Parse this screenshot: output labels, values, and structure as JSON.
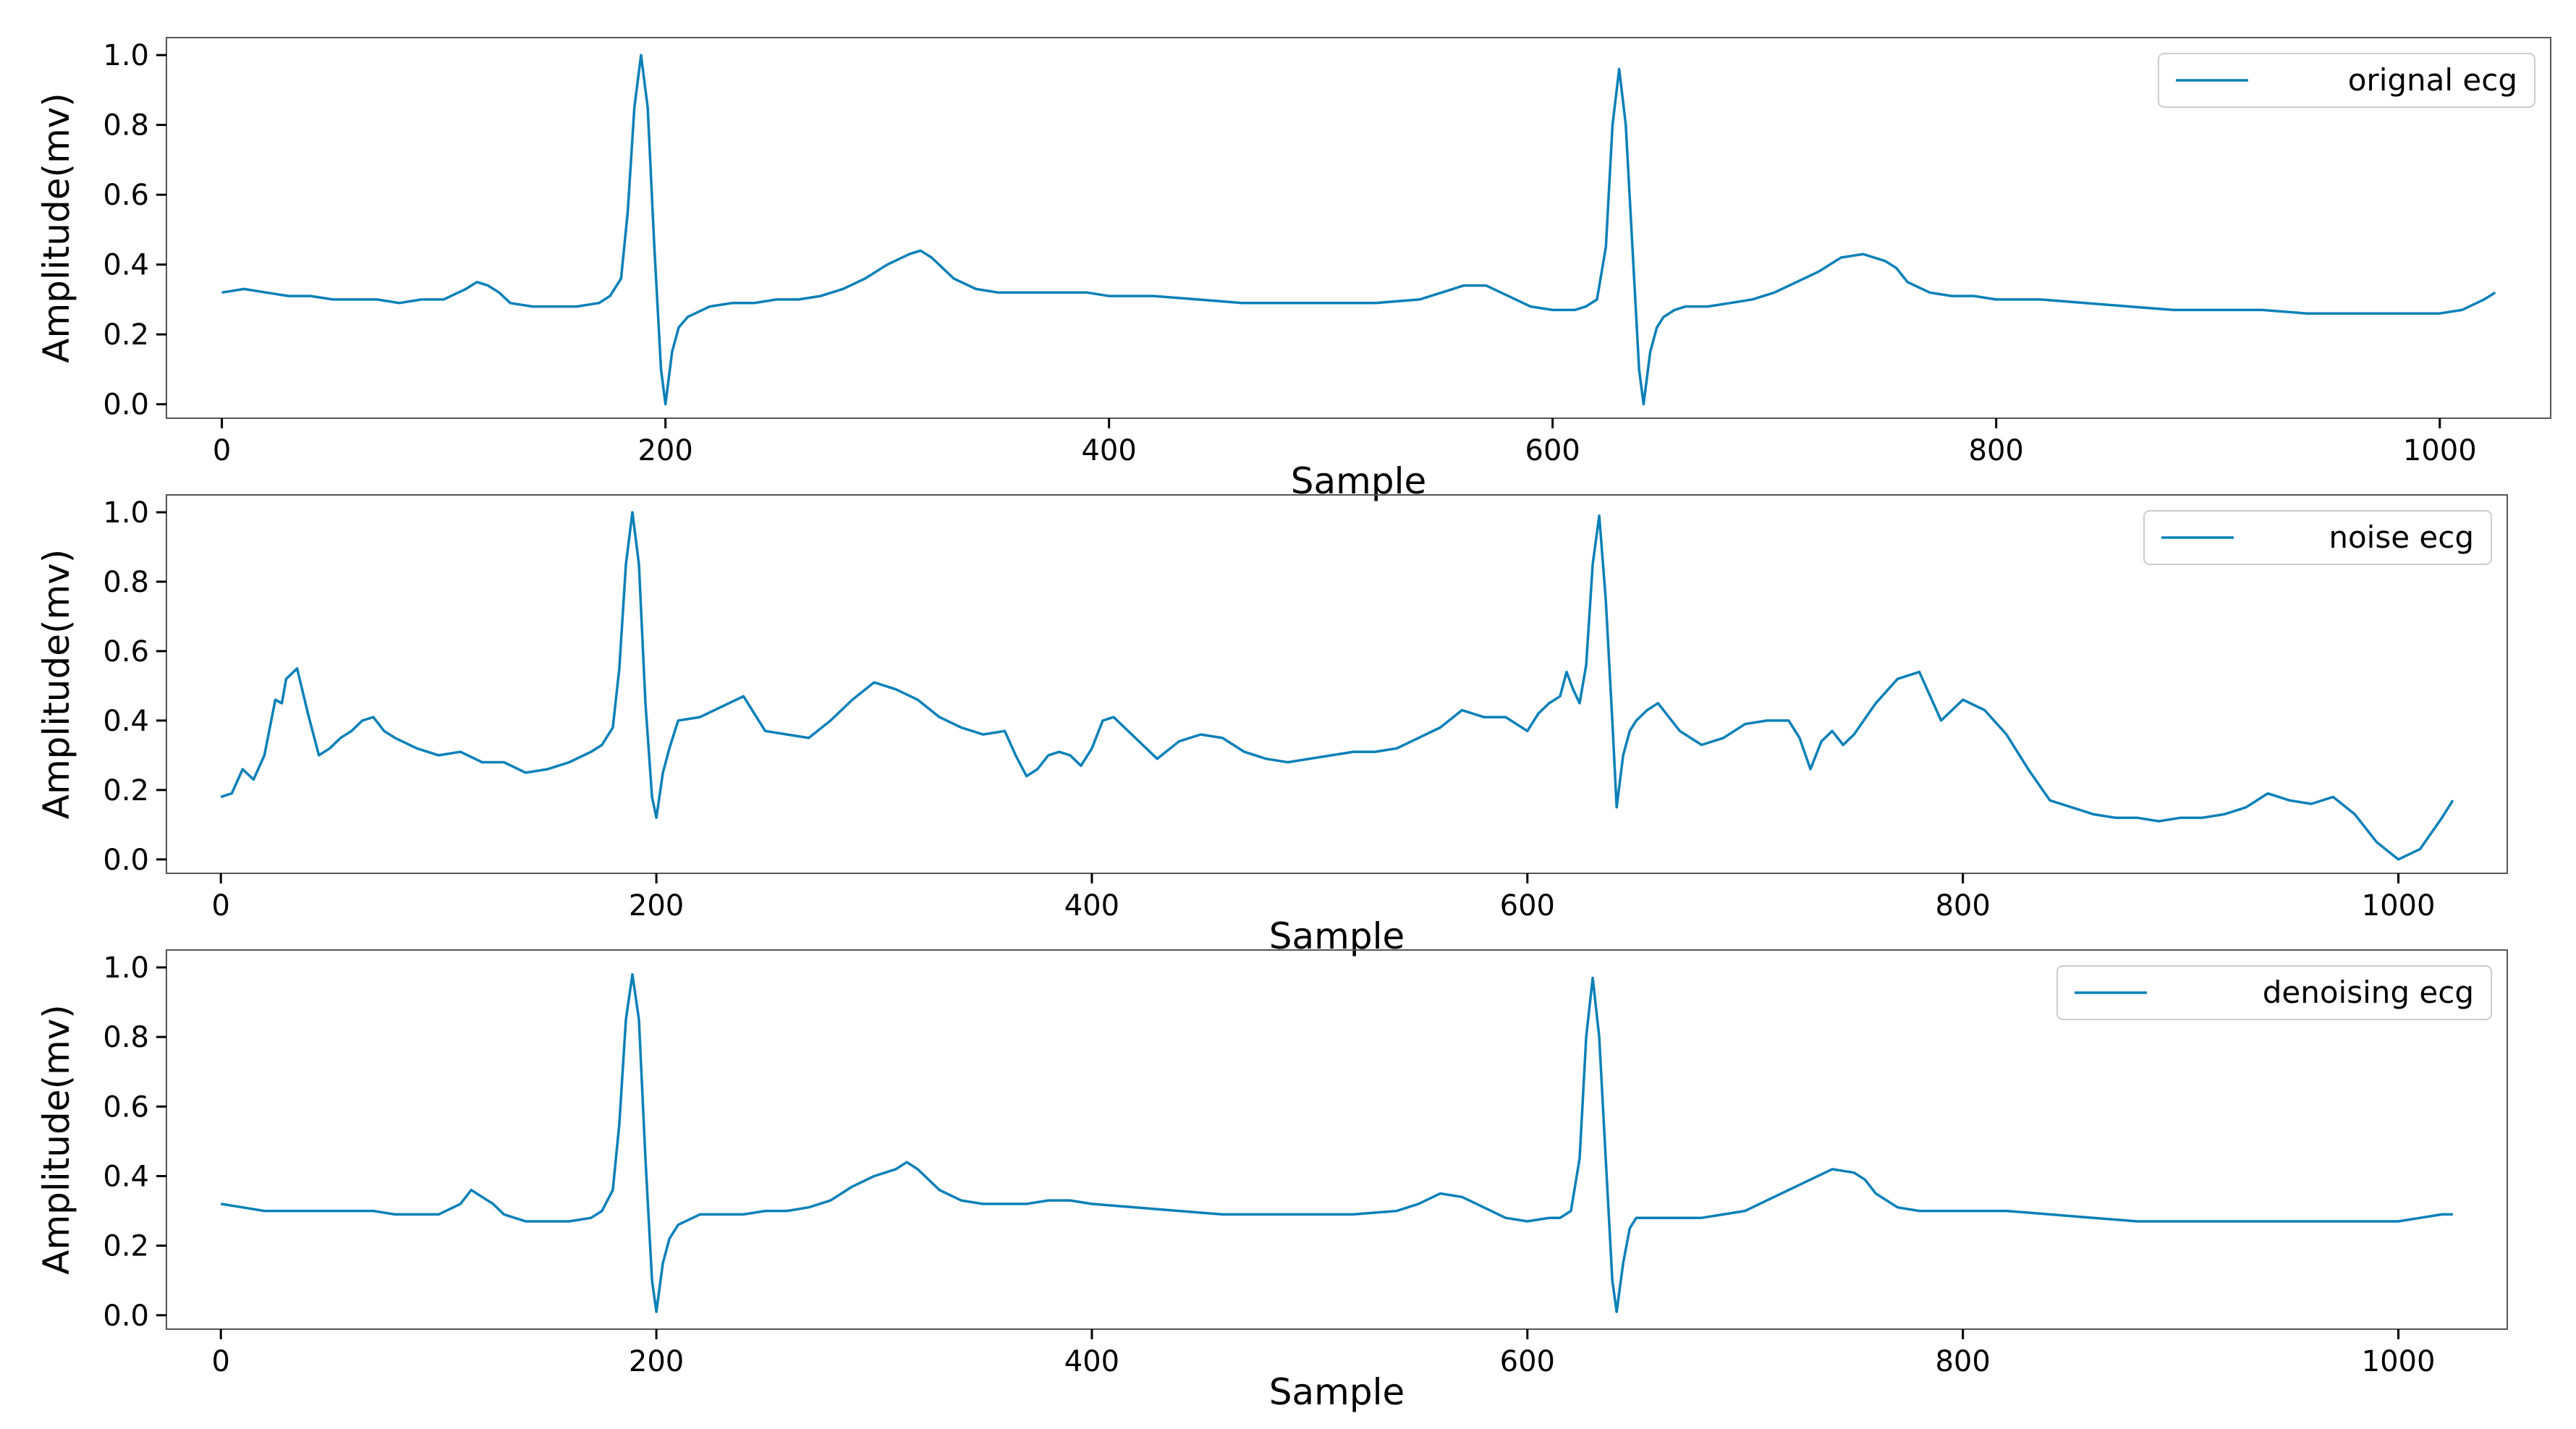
{
  "figure": {
    "line_color": "#0a80b8",
    "axis_color": "#555555"
  },
  "chart_data": [
    {
      "type": "line",
      "xlabel": "Sample",
      "ylabel": "Amplitude(mv)",
      "xlim": [
        -25,
        1050
      ],
      "ylim": [
        -0.04,
        1.05
      ],
      "xticks": [
        0,
        200,
        400,
        600,
        800,
        1000
      ],
      "yticks": [
        0.0,
        0.2,
        0.4,
        0.6,
        0.8,
        1.0
      ],
      "xtick_labels": [
        "0",
        "200",
        "400",
        "600",
        "800",
        "1000"
      ],
      "ytick_labels": [
        "0.0",
        "0.2",
        "0.4",
        "0.6",
        "0.8",
        "1.0"
      ],
      "legend_position": "top-right",
      "series": [
        {
          "name": "orignal ecg",
          "color": "#0a80b8",
          "x": [
            0,
            10,
            20,
            30,
            40,
            50,
            60,
            70,
            80,
            90,
            100,
            110,
            115,
            120,
            125,
            130,
            140,
            150,
            160,
            170,
            175,
            180,
            183,
            186,
            189,
            192,
            195,
            198,
            200,
            203,
            206,
            210,
            220,
            230,
            240,
            250,
            260,
            270,
            280,
            290,
            300,
            310,
            315,
            320,
            330,
            340,
            350,
            360,
            370,
            380,
            390,
            400,
            420,
            440,
            460,
            480,
            500,
            520,
            540,
            550,
            560,
            570,
            580,
            590,
            600,
            610,
            615,
            620,
            624,
            627,
            630,
            633,
            636,
            639,
            641,
            644,
            647,
            650,
            655,
            660,
            670,
            680,
            690,
            700,
            710,
            720,
            730,
            740,
            750,
            755,
            760,
            770,
            780,
            790,
            800,
            820,
            840,
            860,
            880,
            900,
            920,
            940,
            960,
            980,
            1000,
            1010,
            1020,
            1025
          ],
          "y": [
            0.32,
            0.33,
            0.32,
            0.31,
            0.31,
            0.3,
            0.3,
            0.3,
            0.29,
            0.3,
            0.3,
            0.33,
            0.35,
            0.34,
            0.32,
            0.29,
            0.28,
            0.28,
            0.28,
            0.29,
            0.31,
            0.36,
            0.55,
            0.85,
            1.0,
            0.85,
            0.45,
            0.1,
            0.0,
            0.15,
            0.22,
            0.25,
            0.28,
            0.29,
            0.29,
            0.3,
            0.3,
            0.31,
            0.33,
            0.36,
            0.4,
            0.43,
            0.44,
            0.42,
            0.36,
            0.33,
            0.32,
            0.32,
            0.32,
            0.32,
            0.32,
            0.31,
            0.31,
            0.3,
            0.29,
            0.29,
            0.29,
            0.29,
            0.3,
            0.32,
            0.34,
            0.34,
            0.31,
            0.28,
            0.27,
            0.27,
            0.28,
            0.3,
            0.45,
            0.8,
            0.96,
            0.8,
            0.45,
            0.1,
            0.0,
            0.15,
            0.22,
            0.25,
            0.27,
            0.28,
            0.28,
            0.29,
            0.3,
            0.32,
            0.35,
            0.38,
            0.42,
            0.43,
            0.41,
            0.39,
            0.35,
            0.32,
            0.31,
            0.31,
            0.3,
            0.3,
            0.29,
            0.28,
            0.27,
            0.27,
            0.27,
            0.26,
            0.26,
            0.26,
            0.26,
            0.27,
            0.3,
            0.32
          ]
        }
      ]
    },
    {
      "type": "line",
      "xlabel": "Sample",
      "ylabel": "Amplitude(mv)",
      "xlim": [
        -25,
        1050
      ],
      "ylim": [
        -0.04,
        1.05
      ],
      "xticks": [
        0,
        200,
        400,
        600,
        800,
        1000
      ],
      "yticks": [
        0.0,
        0.2,
        0.4,
        0.6,
        0.8,
        1.0
      ],
      "xtick_labels": [
        "0",
        "200",
        "400",
        "600",
        "800",
        "1000"
      ],
      "ytick_labels": [
        "0.0",
        "0.2",
        "0.4",
        "0.6",
        "0.8",
        "1.0"
      ],
      "legend_position": "top-right",
      "series": [
        {
          "name": "noise ecg",
          "color": "#0a80b8",
          "x": [
            0,
            5,
            10,
            15,
            20,
            25,
            28,
            30,
            35,
            40,
            45,
            50,
            55,
            60,
            65,
            70,
            75,
            80,
            90,
            100,
            110,
            120,
            130,
            140,
            150,
            160,
            170,
            175,
            180,
            183,
            186,
            189,
            192,
            195,
            198,
            200,
            203,
            206,
            210,
            220,
            230,
            240,
            245,
            250,
            260,
            270,
            280,
            290,
            300,
            310,
            320,
            330,
            340,
            350,
            360,
            365,
            370,
            375,
            380,
            385,
            390,
            395,
            400,
            405,
            410,
            420,
            430,
            440,
            450,
            460,
            470,
            480,
            490,
            500,
            510,
            520,
            530,
            540,
            550,
            560,
            570,
            580,
            590,
            600,
            605,
            610,
            615,
            618,
            621,
            624,
            627,
            630,
            633,
            636,
            639,
            641,
            644,
            647,
            650,
            655,
            660,
            670,
            680,
            690,
            700,
            710,
            720,
            725,
            730,
            735,
            740,
            745,
            750,
            760,
            770,
            780,
            790,
            800,
            810,
            820,
            830,
            840,
            850,
            860,
            870,
            880,
            890,
            900,
            910,
            920,
            930,
            940,
            950,
            960,
            970,
            980,
            990,
            1000,
            1010,
            1020,
            1025
          ],
          "y": [
            0.18,
            0.19,
            0.26,
            0.23,
            0.3,
            0.46,
            0.45,
            0.52,
            0.55,
            0.42,
            0.3,
            0.32,
            0.35,
            0.37,
            0.4,
            0.41,
            0.37,
            0.35,
            0.32,
            0.3,
            0.31,
            0.28,
            0.28,
            0.25,
            0.26,
            0.28,
            0.31,
            0.33,
            0.38,
            0.55,
            0.85,
            1.0,
            0.85,
            0.45,
            0.18,
            0.12,
            0.25,
            0.32,
            0.4,
            0.41,
            0.44,
            0.47,
            0.42,
            0.37,
            0.36,
            0.35,
            0.4,
            0.46,
            0.51,
            0.49,
            0.46,
            0.41,
            0.38,
            0.36,
            0.37,
            0.3,
            0.24,
            0.26,
            0.3,
            0.31,
            0.3,
            0.27,
            0.32,
            0.4,
            0.41,
            0.35,
            0.29,
            0.34,
            0.36,
            0.35,
            0.31,
            0.29,
            0.28,
            0.29,
            0.3,
            0.31,
            0.31,
            0.32,
            0.35,
            0.38,
            0.43,
            0.41,
            0.41,
            0.37,
            0.42,
            0.45,
            0.47,
            0.54,
            0.49,
            0.45,
            0.56,
            0.85,
            0.99,
            0.75,
            0.4,
            0.15,
            0.3,
            0.37,
            0.4,
            0.43,
            0.45,
            0.37,
            0.33,
            0.35,
            0.39,
            0.4,
            0.4,
            0.35,
            0.26,
            0.34,
            0.37,
            0.33,
            0.36,
            0.45,
            0.52,
            0.54,
            0.4,
            0.46,
            0.43,
            0.36,
            0.26,
            0.17,
            0.15,
            0.13,
            0.12,
            0.12,
            0.11,
            0.12,
            0.12,
            0.13,
            0.15,
            0.19,
            0.17,
            0.16,
            0.18,
            0.13,
            0.05,
            0.0,
            0.03,
            0.12,
            0.17
          ]
        }
      ]
    },
    {
      "type": "line",
      "xlabel": "Sample",
      "ylabel": "Amplitude(mv)",
      "xlim": [
        -25,
        1050
      ],
      "ylim": [
        -0.04,
        1.05
      ],
      "xticks": [
        0,
        200,
        400,
        600,
        800,
        1000
      ],
      "yticks": [
        0.0,
        0.2,
        0.4,
        0.6,
        0.8,
        1.0
      ],
      "xtick_labels": [
        "0",
        "200",
        "400",
        "600",
        "800",
        "1000"
      ],
      "ytick_labels": [
        "0.0",
        "0.2",
        "0.4",
        "0.6",
        "0.8",
        "1.0"
      ],
      "legend_position": "top-right",
      "series": [
        {
          "name": "denoising ecg",
          "color": "#0a80b8",
          "x": [
            0,
            10,
            20,
            30,
            40,
            50,
            60,
            70,
            80,
            90,
            100,
            110,
            115,
            120,
            125,
            130,
            140,
            150,
            160,
            170,
            175,
            180,
            183,
            186,
            189,
            192,
            195,
            198,
            200,
            203,
            206,
            210,
            220,
            230,
            240,
            250,
            260,
            270,
            280,
            290,
            300,
            310,
            315,
            320,
            330,
            340,
            350,
            360,
            370,
            380,
            390,
            400,
            420,
            440,
            460,
            480,
            500,
            520,
            540,
            550,
            560,
            570,
            580,
            590,
            600,
            610,
            615,
            620,
            624,
            627,
            630,
            633,
            636,
            639,
            641,
            644,
            647,
            650,
            655,
            660,
            670,
            680,
            690,
            700,
            710,
            720,
            730,
            740,
            750,
            755,
            760,
            770,
            780,
            790,
            800,
            820,
            840,
            860,
            880,
            900,
            920,
            940,
            960,
            980,
            1000,
            1010,
            1020,
            1025
          ],
          "y": [
            0.32,
            0.31,
            0.3,
            0.3,
            0.3,
            0.3,
            0.3,
            0.3,
            0.29,
            0.29,
            0.29,
            0.32,
            0.36,
            0.34,
            0.32,
            0.29,
            0.27,
            0.27,
            0.27,
            0.28,
            0.3,
            0.36,
            0.55,
            0.85,
            0.98,
            0.85,
            0.45,
            0.1,
            0.01,
            0.15,
            0.22,
            0.26,
            0.29,
            0.29,
            0.29,
            0.3,
            0.3,
            0.31,
            0.33,
            0.37,
            0.4,
            0.42,
            0.44,
            0.42,
            0.36,
            0.33,
            0.32,
            0.32,
            0.32,
            0.33,
            0.33,
            0.32,
            0.31,
            0.3,
            0.29,
            0.29,
            0.29,
            0.29,
            0.3,
            0.32,
            0.35,
            0.34,
            0.31,
            0.28,
            0.27,
            0.28,
            0.28,
            0.3,
            0.45,
            0.8,
            0.97,
            0.8,
            0.45,
            0.1,
            0.01,
            0.15,
            0.25,
            0.28,
            0.28,
            0.28,
            0.28,
            0.28,
            0.29,
            0.3,
            0.33,
            0.36,
            0.39,
            0.42,
            0.41,
            0.39,
            0.35,
            0.31,
            0.3,
            0.3,
            0.3,
            0.3,
            0.29,
            0.28,
            0.27,
            0.27,
            0.27,
            0.27,
            0.27,
            0.27,
            0.27,
            0.28,
            0.29,
            0.29
          ]
        }
      ]
    }
  ]
}
